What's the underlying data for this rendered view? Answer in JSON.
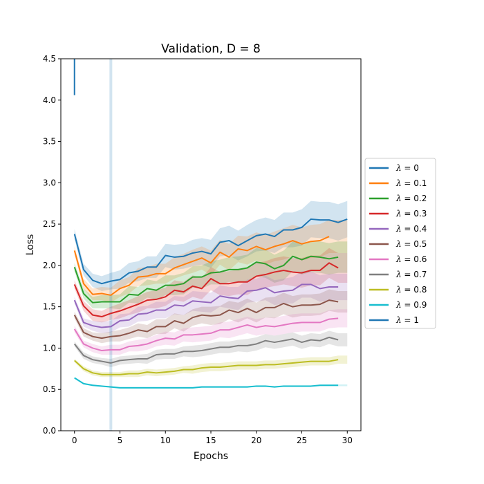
{
  "chart_data": {
    "type": "line",
    "title": "Validation, D = 8",
    "xlabel": "Epochs",
    "ylabel": "Loss",
    "xlim": [
      -1.5,
      31.5
    ],
    "ylim": [
      0.0,
      4.5
    ],
    "xticks": [
      0,
      5,
      10,
      15,
      20,
      25,
      30
    ],
    "yticks": [
      0.0,
      0.5,
      1.0,
      1.5,
      2.0,
      2.5,
      3.0,
      3.5,
      4.0,
      4.5
    ],
    "xtick_labels": [
      "0",
      "5",
      "10",
      "15",
      "20",
      "25",
      "30"
    ],
    "ytick_labels": [
      "0.0",
      "0.5",
      "1.0",
      "1.5",
      "2.0",
      "2.5",
      "3.0",
      "3.5",
      "4.0",
      "4.5"
    ],
    "legend_position": "right",
    "shaded_band_alpha": 0.2,
    "series": [
      {
        "name": "λ = 0",
        "label_prefix": "λ",
        "label_value": "= 0",
        "color": "#1f77b4",
        "values": [
          2.38,
          1.95,
          1.82,
          1.78,
          1.81,
          1.83,
          1.91,
          1.93,
          1.98,
          1.98,
          2.12,
          2.1,
          2.11,
          2.15,
          2.17,
          2.14,
          2.28,
          2.3,
          2.24,
          2.3,
          2.36,
          2.38,
          2.35,
          2.43,
          2.43,
          2.46,
          2.56,
          2.55,
          2.55,
          2.52,
          2.56
        ],
        "spread": [
          0.06,
          0.07,
          0.08,
          0.09,
          0.1,
          0.11,
          0.12,
          0.12,
          0.13,
          0.13,
          0.14,
          0.15,
          0.15,
          0.16,
          0.16,
          0.17,
          0.17,
          0.18,
          0.18,
          0.19,
          0.19,
          0.2,
          0.2,
          0.21,
          0.21,
          0.22,
          0.22,
          0.22,
          0.22,
          0.22,
          0.22
        ]
      },
      {
        "name": "λ = 0.1",
        "label_prefix": "λ",
        "label_value": "= 0.1",
        "color": "#ff7f0e",
        "values": [
          2.18,
          1.78,
          1.65,
          1.66,
          1.64,
          1.72,
          1.76,
          1.86,
          1.87,
          1.9,
          1.9,
          1.97,
          2.01,
          2.05,
          2.09,
          2.03,
          2.16,
          2.1,
          2.2,
          2.18,
          2.23,
          2.19,
          2.23,
          2.26,
          2.3,
          2.26,
          2.29,
          2.3,
          2.35
        ],
        "spread": [
          0.05,
          0.06,
          0.07,
          0.08,
          0.09,
          0.1,
          0.1,
          0.11,
          0.11,
          0.12,
          0.12,
          0.13,
          0.13,
          0.14,
          0.14,
          0.15,
          0.15,
          0.16,
          0.16,
          0.17,
          0.17,
          0.18,
          0.18,
          0.19,
          0.19,
          0.2,
          0.2,
          0.2,
          0.2
        ]
      },
      {
        "name": "λ = 0.2",
        "label_prefix": "λ",
        "label_value": "= 0.2",
        "color": "#2ca02c",
        "values": [
          1.98,
          1.66,
          1.55,
          1.56,
          1.56,
          1.56,
          1.65,
          1.64,
          1.72,
          1.7,
          1.76,
          1.76,
          1.78,
          1.86,
          1.86,
          1.91,
          1.92,
          1.95,
          1.95,
          1.97,
          2.04,
          2.02,
          1.96,
          2.0,
          2.11,
          2.07,
          2.11,
          2.1,
          2.08,
          2.1
        ],
        "spread": [
          0.05,
          0.06,
          0.07,
          0.08,
          0.08,
          0.09,
          0.1,
          0.1,
          0.11,
          0.11,
          0.12,
          0.12,
          0.13,
          0.13,
          0.14,
          0.14,
          0.15,
          0.15,
          0.16,
          0.16,
          0.17,
          0.17,
          0.17,
          0.18,
          0.18,
          0.18,
          0.19,
          0.19,
          0.19,
          0.19
        ]
      },
      {
        "name": "λ = 0.3",
        "label_prefix": "λ",
        "label_value": "= 0.3",
        "color": "#d62728",
        "values": [
          1.77,
          1.51,
          1.4,
          1.38,
          1.42,
          1.45,
          1.49,
          1.53,
          1.58,
          1.59,
          1.62,
          1.7,
          1.68,
          1.75,
          1.72,
          1.84,
          1.78,
          1.78,
          1.8,
          1.8,
          1.87,
          1.89,
          1.92,
          1.94,
          1.92,
          1.91,
          1.94,
          1.94,
          2.03,
          1.97
        ],
        "spread": [
          0.05,
          0.06,
          0.07,
          0.07,
          0.08,
          0.09,
          0.09,
          0.1,
          0.1,
          0.11,
          0.11,
          0.12,
          0.12,
          0.13,
          0.13,
          0.14,
          0.14,
          0.15,
          0.15,
          0.16,
          0.16,
          0.16,
          0.17,
          0.17,
          0.17,
          0.18,
          0.18,
          0.18,
          0.18,
          0.18
        ]
      },
      {
        "name": "λ = 0.4",
        "label_prefix": "λ",
        "label_value": "= 0.4",
        "color": "#9467bd",
        "values": [
          1.58,
          1.31,
          1.27,
          1.25,
          1.26,
          1.33,
          1.34,
          1.41,
          1.42,
          1.46,
          1.46,
          1.52,
          1.51,
          1.57,
          1.56,
          1.55,
          1.63,
          1.61,
          1.6,
          1.69,
          1.7,
          1.73,
          1.67,
          1.69,
          1.7,
          1.77,
          1.77,
          1.72,
          1.74,
          1.74
        ],
        "spread": [
          0.04,
          0.05,
          0.06,
          0.07,
          0.07,
          0.08,
          0.08,
          0.09,
          0.09,
          0.1,
          0.1,
          0.11,
          0.11,
          0.12,
          0.12,
          0.12,
          0.13,
          0.13,
          0.14,
          0.14,
          0.14,
          0.15,
          0.15,
          0.15,
          0.16,
          0.16,
          0.16,
          0.16,
          0.16,
          0.16
        ]
      },
      {
        "name": "λ = 0.5",
        "label_prefix": "λ",
        "label_value": "= 0.5",
        "color": "#8c564b",
        "values": [
          1.4,
          1.19,
          1.14,
          1.12,
          1.14,
          1.15,
          1.18,
          1.22,
          1.2,
          1.26,
          1.26,
          1.33,
          1.3,
          1.37,
          1.4,
          1.39,
          1.4,
          1.46,
          1.43,
          1.48,
          1.43,
          1.49,
          1.49,
          1.54,
          1.5,
          1.52,
          1.52,
          1.53,
          1.58,
          1.56
        ],
        "spread": [
          0.04,
          0.05,
          0.05,
          0.06,
          0.06,
          0.07,
          0.07,
          0.08,
          0.08,
          0.09,
          0.09,
          0.09,
          0.1,
          0.1,
          0.1,
          0.11,
          0.11,
          0.11,
          0.12,
          0.12,
          0.12,
          0.12,
          0.13,
          0.13,
          0.13,
          0.13,
          0.13,
          0.13,
          0.13,
          0.13
        ]
      },
      {
        "name": "λ = 0.6",
        "label_prefix": "λ",
        "label_value": "= 0.6",
        "color": "#e377c2",
        "values": [
          1.23,
          1.05,
          1.0,
          0.97,
          0.98,
          0.98,
          1.02,
          1.03,
          1.05,
          1.09,
          1.12,
          1.11,
          1.16,
          1.16,
          1.17,
          1.18,
          1.22,
          1.22,
          1.25,
          1.28,
          1.25,
          1.27,
          1.26,
          1.28,
          1.3,
          1.31,
          1.31,
          1.31,
          1.35,
          1.36
        ],
        "spread": [
          0.04,
          0.04,
          0.05,
          0.05,
          0.06,
          0.06,
          0.06,
          0.07,
          0.07,
          0.07,
          0.08,
          0.08,
          0.08,
          0.09,
          0.09,
          0.09,
          0.09,
          0.1,
          0.1,
          0.1,
          0.1,
          0.1,
          0.11,
          0.11,
          0.11,
          0.11,
          0.11,
          0.11,
          0.11,
          0.11
        ]
      },
      {
        "name": "λ = 0.7",
        "label_prefix": "λ",
        "label_value": "= 0.7",
        "color": "#7f7f7f",
        "values": [
          1.05,
          0.91,
          0.86,
          0.84,
          0.82,
          0.85,
          0.86,
          0.87,
          0.87,
          0.92,
          0.93,
          0.93,
          0.96,
          0.96,
          0.97,
          0.99,
          1.01,
          1.01,
          1.03,
          1.03,
          1.05,
          1.09,
          1.07,
          1.09,
          1.11,
          1.07,
          1.1,
          1.09,
          1.13,
          1.1
        ],
        "spread": [
          0.03,
          0.04,
          0.04,
          0.04,
          0.05,
          0.05,
          0.05,
          0.05,
          0.06,
          0.06,
          0.06,
          0.06,
          0.06,
          0.07,
          0.07,
          0.07,
          0.07,
          0.07,
          0.07,
          0.08,
          0.08,
          0.08,
          0.08,
          0.08,
          0.08,
          0.08,
          0.08,
          0.08,
          0.08,
          0.08
        ]
      },
      {
        "name": "λ = 0.8",
        "label_prefix": "λ",
        "label_value": "= 0.8",
        "color": "#bcbd22",
        "values": [
          0.85,
          0.75,
          0.7,
          0.68,
          0.68,
          0.68,
          0.69,
          0.69,
          0.71,
          0.7,
          0.71,
          0.72,
          0.74,
          0.74,
          0.76,
          0.77,
          0.77,
          0.78,
          0.79,
          0.79,
          0.79,
          0.8,
          0.8,
          0.81,
          0.82,
          0.83,
          0.84,
          0.84,
          0.84,
          0.86
        ],
        "spread": [
          0.02,
          0.03,
          0.03,
          0.03,
          0.03,
          0.03,
          0.04,
          0.04,
          0.04,
          0.04,
          0.04,
          0.04,
          0.04,
          0.05,
          0.05,
          0.05,
          0.05,
          0.05,
          0.05,
          0.05,
          0.05,
          0.05,
          0.05,
          0.05,
          0.05,
          0.05,
          0.05,
          0.05,
          0.05,
          0.05
        ]
      },
      {
        "name": "λ = 0.9",
        "label_prefix": "λ",
        "label_value": "= 0.9",
        "color": "#17becf",
        "values": [
          0.64,
          0.57,
          0.55,
          0.54,
          0.53,
          0.52,
          0.52,
          0.52,
          0.52,
          0.52,
          0.52,
          0.52,
          0.52,
          0.52,
          0.53,
          0.53,
          0.53,
          0.53,
          0.53,
          0.53,
          0.54,
          0.54,
          0.53,
          0.54,
          0.54,
          0.54,
          0.54,
          0.55,
          0.55,
          0.55
        ],
        "spread": [
          0.01,
          0.01,
          0.01,
          0.01,
          0.01,
          0.01,
          0.01,
          0.01,
          0.01,
          0.01,
          0.01,
          0.01,
          0.01,
          0.01,
          0.01,
          0.01,
          0.01,
          0.01,
          0.01,
          0.01,
          0.01,
          0.01,
          0.01,
          0.01,
          0.01,
          0.01,
          0.01,
          0.01,
          0.01,
          0.01
        ]
      },
      {
        "name": "λ = 1",
        "label_prefix": "λ",
        "label_value": "= 1",
        "color": "#1f77b4",
        "values": [
          4.06,
          4.5
        ],
        "spread": [
          0.05,
          0.05
        ],
        "vertical_band_at_epoch": 4
      }
    ]
  }
}
